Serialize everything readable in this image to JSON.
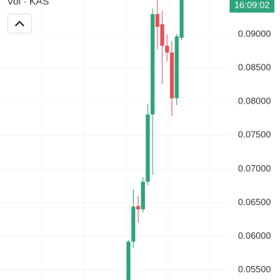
{
  "chart_data": {
    "type": "candlestick",
    "title": "Vol · KAS",
    "countdown": "16:09:02",
    "categories": [
      null,
      null,
      null,
      null,
      null,
      null,
      null,
      null,
      null,
      null,
      null,
      null
    ],
    "open": [
      0.0535,
      0.0592,
      0.0645,
      0.064,
      0.0681,
      0.0781,
      0.093,
      0.0915,
      0.0883,
      0.0873,
      0.0805,
      0.0895
    ],
    "high": [
      0.0594,
      0.067,
      0.066,
      0.0688,
      0.0797,
      0.0938,
      0.0951,
      0.0935,
      0.09,
      0.089,
      0.09,
      0.0951
    ],
    "low": [
      0.0535,
      0.0582,
      0.062,
      0.0635,
      0.0675,
      0.0691,
      0.0878,
      0.0826,
      0.086,
      0.0779,
      0.0795,
      0.0891
    ],
    "close": [
      0.0592,
      0.0644,
      0.064,
      0.0681,
      0.0781,
      0.093,
      0.0911,
      0.0883,
      0.0873,
      0.0805,
      0.0897,
      0.0951
    ],
    "up_color": "#2fa37c",
    "down_color": "#e0525a",
    "ylim": [
      0.0535,
      0.0951
    ],
    "yticks": [
      {
        "value": 0.055,
        "label": "0.05500"
      },
      {
        "value": 0.06,
        "label": "0.06000"
      },
      {
        "value": 0.065,
        "label": "0.06500"
      },
      {
        "value": 0.07,
        "label": "0.07000"
      },
      {
        "value": 0.075,
        "label": "0.07500"
      },
      {
        "value": 0.08,
        "label": "0.08000"
      },
      {
        "value": 0.085,
        "label": "0.08500"
      },
      {
        "value": 0.09,
        "label": "0.09000"
      }
    ],
    "grid": true
  }
}
